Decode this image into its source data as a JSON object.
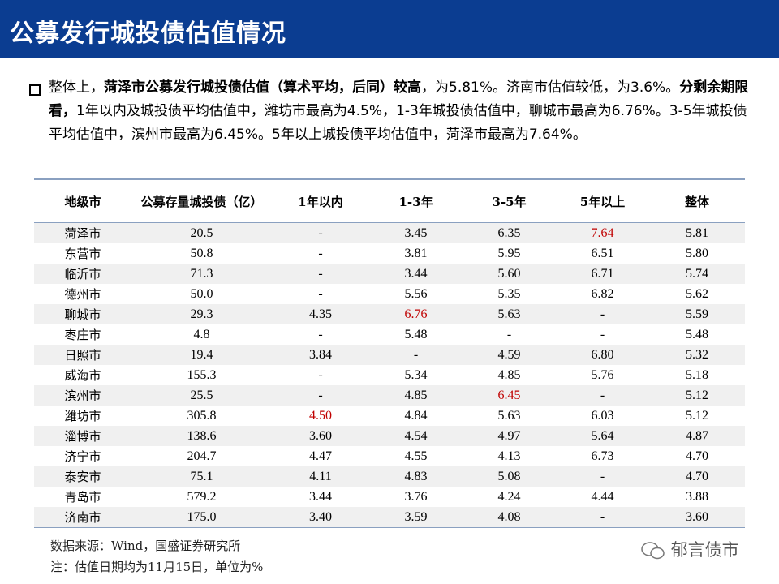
{
  "header": {
    "title": "公募发行城投债估值情况"
  },
  "summary": {
    "runs": [
      {
        "text": "整体上，",
        "bold": false
      },
      {
        "text": "菏泽市公募发行城投债估值（算术平均，后同）较高",
        "bold": true
      },
      {
        "text": "，为5.81%。济南市估值较低，为3.6%。",
        "bold": false
      },
      {
        "text": "分剩余期限看，",
        "bold": true
      },
      {
        "text": "1年以内及城投债平均估值中，潍坊市最高为4.5%，1-3年城投债估值中，聊城市最高为6.76%。3-5年城投债平均估值中，滨州市最高为6.45%。5年以上城投债平均估值中，菏泽市最高为7.64%。",
        "bold": false
      }
    ]
  },
  "table": {
    "columns": [
      "地级市",
      "公募存量城投债（亿）",
      "1年以内",
      "1-3年",
      "3-5年",
      "5年以上",
      "整体"
    ],
    "rows": [
      [
        "菏泽市",
        "20.5",
        "-",
        "3.45",
        "6.35",
        "7.64",
        "5.81"
      ],
      [
        "东营市",
        "50.8",
        "-",
        "3.81",
        "5.95",
        "6.51",
        "5.80"
      ],
      [
        "临沂市",
        "71.3",
        "-",
        "3.44",
        "5.60",
        "6.71",
        "5.74"
      ],
      [
        "德州市",
        "50.0",
        "-",
        "5.56",
        "5.35",
        "6.82",
        "5.62"
      ],
      [
        "聊城市",
        "29.3",
        "4.35",
        "6.76",
        "5.63",
        "-",
        "5.59"
      ],
      [
        "枣庄市",
        "4.8",
        "-",
        "5.48",
        "-",
        "-",
        "5.48"
      ],
      [
        "日照市",
        "19.4",
        "3.84",
        "-",
        "4.59",
        "6.80",
        "5.32"
      ],
      [
        "威海市",
        "155.3",
        "-",
        "5.34",
        "4.85",
        "5.76",
        "5.18"
      ],
      [
        "滨州市",
        "25.5",
        "-",
        "4.85",
        "6.45",
        "-",
        "5.12"
      ],
      [
        "潍坊市",
        "305.8",
        "4.50",
        "4.84",
        "5.63",
        "6.03",
        "5.12"
      ],
      [
        "淄博市",
        "138.6",
        "3.60",
        "4.54",
        "4.97",
        "5.64",
        "4.87"
      ],
      [
        "济宁市",
        "204.7",
        "4.47",
        "4.55",
        "4.13",
        "6.73",
        "4.70"
      ],
      [
        "泰安市",
        "75.1",
        "4.11",
        "4.83",
        "5.08",
        "-",
        "4.70"
      ],
      [
        "青岛市",
        "579.2",
        "3.44",
        "3.76",
        "4.24",
        "4.44",
        "3.88"
      ],
      [
        "济南市",
        "175.0",
        "3.40",
        "3.59",
        "4.08",
        "-",
        "3.60"
      ]
    ],
    "highlight_color": "#c00000",
    "highlights": [
      [
        0,
        5
      ],
      [
        4,
        3
      ],
      [
        8,
        4
      ],
      [
        9,
        2
      ]
    ]
  },
  "footnotes": [
    "数据来源：Wind，国盛证券研究所",
    "注：估值日期均为11月15日，单位为%"
  ],
  "watermark": "郁言债市"
}
